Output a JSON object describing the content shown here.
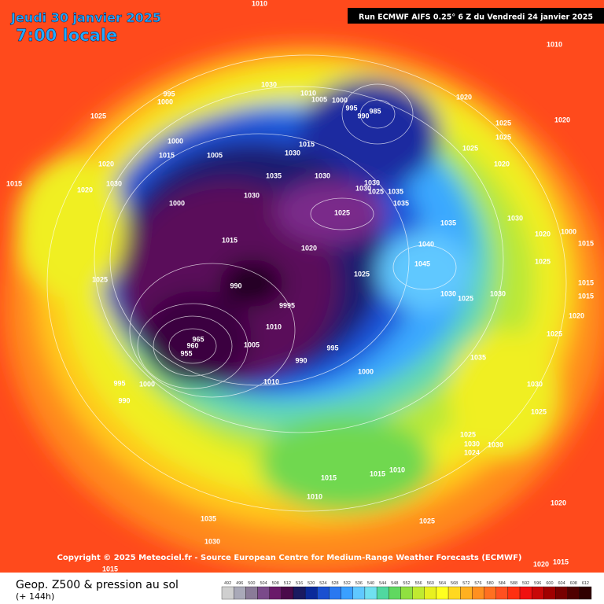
{
  "header": {
    "date": "Jeudi 30 janvier 2025",
    "time": "7:00 locale",
    "run": "Run ECMWF AIFS 0.25° 6 Z du Vendredi 24 janvier 2025"
  },
  "copyright": "Copyright © 2025 Meteociel.fr - Source European Centre for Medium-Range Weather Forecasts (ECMWF)",
  "legend": {
    "title": "Geop. Z500 & pression au sol",
    "subtitle": "(+ 144h)",
    "ticks": [
      492,
      496,
      500,
      504,
      508,
      512,
      516,
      520,
      524,
      528,
      532,
      536,
      540,
      544,
      548,
      552,
      556,
      560,
      564,
      568,
      572,
      576,
      580,
      584,
      588,
      592,
      596,
      600,
      604,
      608,
      612
    ],
    "colors": [
      "#cfcfcf",
      "#a9a9b8",
      "#8a7b98",
      "#7a4a8a",
      "#6a1a6a",
      "#4a0a4a",
      "#1a1a60",
      "#0a2a9a",
      "#1a50d0",
      "#2a78f0",
      "#3aa0ff",
      "#60c8ff",
      "#70e0f0",
      "#50d8a0",
      "#60d860",
      "#90e040",
      "#c0ea30",
      "#e8f020",
      "#ffff20",
      "#ffd820",
      "#ffb020",
      "#ff9020",
      "#ff7020",
      "#ff5020",
      "#ff3010",
      "#f01010",
      "#c80808",
      "#a00000",
      "#780000",
      "#500000",
      "#300000"
    ]
  },
  "pressure_labels": [
    1010,
    1010,
    1025,
    995,
    1000,
    1030,
    1010,
    1005,
    1000,
    995,
    990,
    985,
    1020,
    1020,
    1025,
    1025,
    1025,
    1020,
    1000,
    1015,
    1005,
    1020,
    1015,
    1020,
    1030,
    1015,
    1030,
    1035,
    1030,
    1030,
    1030,
    1025,
    1035,
    1035,
    1030,
    1000,
    1025,
    1030,
    1035,
    1015,
    1020,
    1040,
    1020,
    1000,
    1015,
    1025,
    1045,
    1025,
    990,
    9995,
    1030,
    1025,
    1030,
    1025,
    1010,
    995,
    990,
    1005,
    960,
    955,
    965,
    1000,
    1010,
    1035,
    1030,
    1025,
    995,
    1000,
    990,
    1025,
    1030,
    1030,
    1024,
    1015,
    1015,
    1010,
    1010,
    1020,
    1035,
    1025,
    1030,
    1020,
    1015,
    1015,
    1015,
    1020,
    1015,
    1025
  ]
}
